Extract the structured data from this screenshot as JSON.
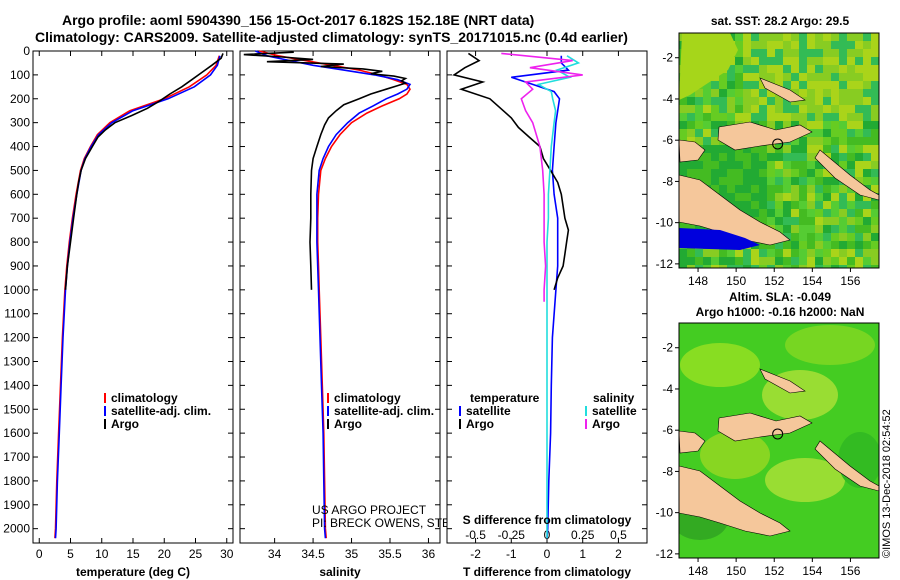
{
  "title_line1": "Argo profile: aoml 5904390_156 15-Oct-2017 6.182S 152.18E (NRT data)",
  "title_line2": "Climatology: CARS2009. Satellite-adjusted climatology: synTS_20171015.nc (0.4d earlier)",
  "credits": [
    "US ARGO PROJECT",
    "PI: BRECK OWENS, STEVE JAYNE, P.E. ROBBINS"
  ],
  "watermark": "©IMOS 13-Dec-2018 02:54:52",
  "colors": {
    "climatology": "#ff0000",
    "satellite": "#0000ff",
    "argo": "#000000",
    "cyan": "#22dddd",
    "magenta": "#ee22ee"
  },
  "chart_data": [
    {
      "type": "line",
      "id": "temperature",
      "xlabel": "temperature (deg C)",
      "xlim": [
        -1,
        31
      ],
      "xticks": [
        0,
        5,
        10,
        15,
        20,
        25,
        30
      ],
      "ylim": [
        0,
        2060
      ],
      "yticks": [
        0,
        100,
        200,
        300,
        400,
        500,
        600,
        700,
        800,
        900,
        1000,
        1100,
        1200,
        1300,
        1400,
        1500,
        1600,
        1700,
        1800,
        1900,
        2000
      ],
      "legend": [
        "climatology",
        "satellite-adj. clim.",
        "Argo"
      ],
      "series": [
        {
          "name": "climatology",
          "depth": [
            20,
            60,
            100,
            150,
            200,
            250,
            300,
            350,
            400,
            450,
            500,
            600,
            700,
            800,
            900,
            1000,
            1200,
            1400,
            1600,
            1800,
            2000,
            2040
          ],
          "values": [
            28.8,
            28.3,
            26.8,
            24.0,
            20.0,
            14.5,
            11.3,
            9.3,
            8.2,
            7.2,
            6.6,
            5.9,
            5.3,
            4.8,
            4.4,
            4.1,
            3.7,
            3.4,
            3.1,
            2.8,
            2.6,
            2.5
          ]
        },
        {
          "name": "satellite-adj. clim.",
          "depth": [
            20,
            60,
            100,
            150,
            200,
            250,
            300,
            350,
            400,
            450,
            500,
            600,
            700,
            800,
            900,
            1000,
            1200,
            1400,
            1600,
            1800,
            2000,
            2040
          ],
          "values": [
            28.9,
            28.5,
            27.4,
            24.8,
            20.6,
            15.0,
            11.6,
            9.5,
            8.3,
            7.3,
            6.7,
            6.0,
            5.4,
            4.9,
            4.5,
            4.2,
            3.8,
            3.5,
            3.2,
            2.9,
            2.7,
            2.6
          ]
        },
        {
          "name": "Argo",
          "depth": [
            10,
            30,
            60,
            90,
            120,
            150,
            180,
            210,
            240,
            270,
            300,
            330,
            360,
            400,
            450,
            500,
            550,
            600,
            700,
            800,
            900,
            1000
          ],
          "values": [
            29.4,
            29.1,
            27.6,
            26.0,
            24.4,
            22.8,
            20.9,
            19.2,
            17.3,
            14.8,
            12.1,
            10.6,
            9.4,
            8.5,
            7.4,
            6.7,
            6.3,
            6.0,
            5.5,
            5.0,
            4.5,
            4.2
          ]
        }
      ]
    },
    {
      "type": "line",
      "id": "salinity",
      "xlabel": "salinity",
      "xlim": [
        33.55,
        36.15
      ],
      "xticks": [
        34,
        34.5,
        35,
        35.5,
        36
      ],
      "ylim": [
        0,
        2060
      ],
      "legend": [
        "climatology",
        "satellite-adj. clim.",
        "Argo"
      ],
      "series": [
        {
          "name": "climatology",
          "depth": [
            0,
            20,
            40,
            60,
            80,
            100,
            120,
            140,
            160,
            180,
            200,
            230,
            260,
            300,
            350,
            400,
            450,
            500,
            600,
            700,
            800,
            900,
            1000,
            1200,
            1400,
            1600,
            1800,
            2000,
            2040
          ],
          "values": [
            33.8,
            34.05,
            34.4,
            34.75,
            35.1,
            35.35,
            35.55,
            35.72,
            35.76,
            35.72,
            35.62,
            35.4,
            35.2,
            35.0,
            34.85,
            34.74,
            34.66,
            34.6,
            34.57,
            34.56,
            34.56,
            34.57,
            34.58,
            34.6,
            34.62,
            34.64,
            34.65,
            34.66,
            34.67
          ]
        },
        {
          "name": "satellite-adj. clim.",
          "depth": [
            0,
            20,
            40,
            60,
            80,
            100,
            120,
            140,
            160,
            180,
            200,
            230,
            260,
            300,
            350,
            400,
            450,
            500,
            600,
            700,
            800,
            900,
            1000,
            1200,
            1400,
            1600,
            1800,
            2000,
            2040
          ],
          "values": [
            33.75,
            33.9,
            34.2,
            34.5,
            34.9,
            35.3,
            35.6,
            35.76,
            35.72,
            35.6,
            35.45,
            35.28,
            35.1,
            34.95,
            34.8,
            34.7,
            34.63,
            34.58,
            34.55,
            34.55,
            34.55,
            34.56,
            34.57,
            34.59,
            34.61,
            34.63,
            34.64,
            34.65,
            34.66
          ]
        },
        {
          "name": "Argo",
          "depth": [
            5,
            15,
            25,
            35,
            45,
            55,
            65,
            75,
            85,
            95,
            105,
            115,
            125,
            135,
            145,
            160,
            180,
            200,
            225,
            250,
            280,
            310,
            350,
            400,
            450,
            500,
            600,
            700,
            800,
            900,
            1000
          ],
          "values": [
            34.25,
            33.6,
            34.1,
            34.5,
            33.9,
            34.9,
            34.6,
            35.15,
            35.4,
            35.25,
            35.55,
            35.7,
            35.65,
            35.7,
            35.6,
            35.45,
            35.25,
            35.1,
            34.9,
            34.8,
            34.7,
            34.65,
            34.6,
            34.55,
            34.5,
            34.48,
            34.47,
            34.47,
            34.46,
            34.47,
            34.48
          ]
        }
      ]
    },
    {
      "type": "line",
      "id": "difference",
      "xlabel": "T difference from climatology",
      "x2label": "S difference from climatology",
      "xlim": [
        -2.8,
        2.8
      ],
      "xticks": [
        -2,
        -1,
        0,
        1,
        2
      ],
      "x2ticks": [
        -0.5,
        -0.25,
        0,
        0.25,
        0.5
      ],
      "x2ticklabels": [
        "-0.5",
        "-0.25",
        "0",
        "0.25",
        "0.5"
      ],
      "legend_temperature_title": "temperature",
      "legend_salinity_title": "salinity",
      "legend_temperature": [
        "satellite",
        "Argo"
      ],
      "legend_salinity": [
        "satellite",
        "Argo"
      ],
      "series": [
        {
          "name": "T satellite",
          "depth": [
            20,
            50,
            80,
            110,
            140,
            170,
            200,
            250,
            300,
            400,
            500,
            600,
            700,
            800,
            900,
            1000,
            1200,
            1400,
            1600,
            1800,
            2000,
            2040
          ],
          "values": [
            0.4,
            0.4,
            0.6,
            -1.0,
            -0.4,
            0.2,
            0.35,
            0.3,
            0.25,
            0.2,
            0.15,
            0.2,
            0.3,
            0.3,
            0.3,
            0.25,
            0.15,
            0.12,
            0.1,
            0.05,
            0.02,
            0.0
          ]
        },
        {
          "name": "T Argo",
          "depth": [
            10,
            40,
            70,
            100,
            130,
            160,
            200,
            240,
            280,
            320,
            360,
            400,
            450,
            500,
            550,
            600,
            650,
            700,
            750,
            800,
            850,
            900,
            950,
            1000
          ],
          "values": [
            -2.2,
            -1.9,
            -2.3,
            -2.6,
            -1.8,
            -2.4,
            -1.6,
            -1.3,
            -1.0,
            -0.8,
            -0.5,
            -0.2,
            -0.1,
            0.1,
            0.3,
            0.4,
            0.45,
            0.5,
            0.6,
            0.55,
            0.5,
            0.45,
            0.3,
            0.2
          ]
        },
        {
          "name": "S satellite",
          "depth": [
            20,
            50,
            80,
            110,
            140,
            170,
            200,
            250,
            300,
            400,
            500,
            600,
            700,
            800,
            900,
            1000,
            1200,
            1400,
            1600,
            1800,
            2000,
            2040
          ],
          "values": [
            0.14,
            0.22,
            0.07,
            0.16,
            -0.06,
            0.03,
            0.04,
            0.06,
            0.05,
            0.03,
            0.02,
            0.01,
            0.01,
            0.0,
            0.0,
            0.0,
            0.0,
            0.0,
            0.0,
            0.0,
            0.0,
            0.0
          ]
        },
        {
          "name": "S Argo",
          "depth": [
            10,
            40,
            70,
            100,
            130,
            160,
            200,
            250,
            300,
            400,
            500,
            600,
            700,
            800,
            900,
            1000,
            1050
          ],
          "values": [
            -0.32,
            0.18,
            -0.12,
            0.25,
            -0.15,
            -0.1,
            -0.18,
            -0.15,
            -0.1,
            -0.05,
            -0.03,
            -0.02,
            -0.02,
            -0.02,
            -0.01,
            -0.02,
            -0.02
          ]
        }
      ]
    },
    {
      "type": "heatmap",
      "id": "sst-map",
      "title": "sat. SST: 28.2 Argo: 29.5",
      "xticks": [
        148,
        150,
        152,
        154,
        156
      ],
      "yticks": [
        -2,
        -4,
        -6,
        -8,
        -10,
        -12
      ],
      "xlim": [
        147,
        157.5
      ],
      "ylim": [
        -12.2,
        -0.8
      ],
      "argo_lon": 152.18,
      "argo_lat": -6.182
    },
    {
      "type": "heatmap",
      "id": "sla-map",
      "title_line1": "Altim. SLA: -0.049",
      "title_line2": "Argo h1000: -0.16 h2000: NaN",
      "xticks": [
        148,
        150,
        152,
        154,
        156
      ],
      "yticks": [
        -2,
        -4,
        -6,
        -8,
        -10,
        -12
      ],
      "xlim": [
        147,
        157.5
      ],
      "ylim": [
        -12.2,
        -0.8
      ],
      "argo_lon": 152.18,
      "argo_lat": -6.182
    }
  ]
}
